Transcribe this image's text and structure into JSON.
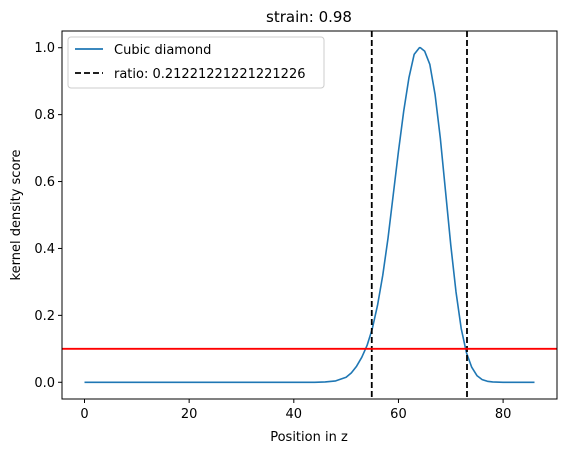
{
  "chart_data": {
    "type": "line",
    "title": "strain: 0.98",
    "xlabel": "Position in z",
    "ylabel": "kernel density score",
    "xlim": [
      -4.3,
      90.3
    ],
    "ylim": [
      -0.05,
      1.05
    ],
    "xticks": [
      0,
      20,
      40,
      60,
      80
    ],
    "yticks": [
      0.0,
      0.2,
      0.4,
      0.6,
      0.8,
      1.0
    ],
    "xtick_labels": [
      "0",
      "20",
      "40",
      "60",
      "80"
    ],
    "ytick_labels": [
      "0.0",
      "0.2",
      "0.4",
      "0.6",
      "0.8",
      "1.0"
    ],
    "grid": false,
    "legend_position": "top-left",
    "series": [
      {
        "name": "Cubic diamond",
        "color": "#1f77b4",
        "style": "solid",
        "x": [
          0,
          10,
          20,
          30,
          40,
          44,
          46,
          48,
          50,
          51,
          52,
          53,
          54,
          55,
          56,
          57,
          58,
          59,
          60,
          61,
          62,
          63,
          64,
          64.2,
          65,
          66,
          67,
          68,
          69,
          70,
          71,
          72,
          73,
          74,
          75,
          76,
          77,
          78,
          80,
          82,
          84,
          86
        ],
        "y": [
          0.0,
          0.0,
          0.0,
          0.0,
          0.0,
          0.0,
          0.001,
          0.004,
          0.015,
          0.028,
          0.048,
          0.075,
          0.11,
          0.16,
          0.23,
          0.32,
          0.43,
          0.56,
          0.69,
          0.81,
          0.91,
          0.98,
          1.0,
          1.0,
          0.99,
          0.95,
          0.86,
          0.73,
          0.57,
          0.41,
          0.27,
          0.16,
          0.088,
          0.045,
          0.02,
          0.008,
          0.003,
          0.001,
          0.0,
          0.0,
          0.0,
          0.0
        ]
      }
    ],
    "vlines": [
      {
        "x": 54.9,
        "color": "#000000",
        "style": "dashed",
        "legend": "ratio: 0.21221221221221226"
      },
      {
        "x": 73.1,
        "color": "#000000",
        "style": "dashed"
      }
    ],
    "hlines": [
      {
        "y": 0.1,
        "color": "#ff0000",
        "style": "solid"
      }
    ],
    "legend": [
      {
        "label": "Cubic diamond",
        "color": "#1f77b4",
        "style": "solid"
      },
      {
        "label": "ratio: 0.21221221221221226",
        "color": "#000000",
        "style": "dashed"
      }
    ]
  }
}
